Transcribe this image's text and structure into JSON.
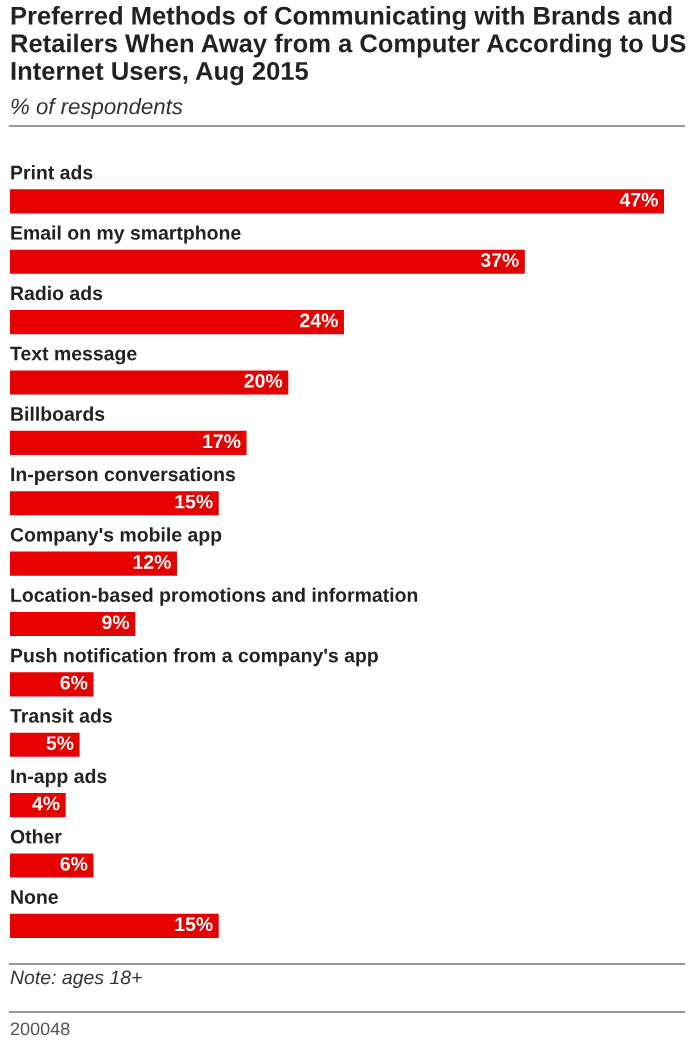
{
  "chart_data": {
    "type": "bar",
    "orientation": "horizontal",
    "title": "Preferred Methods of Communicating with Brands and Retailers When Away from a Computer According to US Internet Users, Aug 2015",
    "subtitle": "% of respondents",
    "categories": [
      "Print ads",
      "Email on my smartphone",
      "Radio ads",
      "Text message",
      "Billboards",
      "In-person conversations",
      "Company's mobile app",
      "Location-based promotions and information",
      "Push notification from a company's app",
      "Transit ads",
      "In-app ads",
      "Other",
      "None"
    ],
    "values": [
      47,
      37,
      24,
      20,
      17,
      15,
      12,
      9,
      6,
      5,
      4,
      6,
      15
    ],
    "value_labels": [
      "47%",
      "37%",
      "24%",
      "20%",
      "17%",
      "15%",
      "12%",
      "9%",
      "6%",
      "5%",
      "4%",
      "6%",
      "15%"
    ],
    "color": "#e60000",
    "annotations": [
      "Note: ages 18+",
      "200048"
    ]
  }
}
